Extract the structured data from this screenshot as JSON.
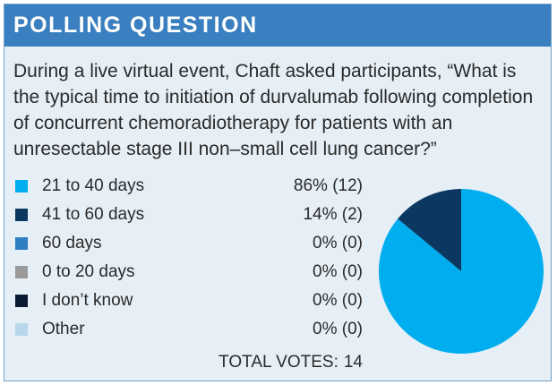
{
  "header": {
    "title": "POLLING QUESTION"
  },
  "question": "During a live virtual event, Chaft asked participants, “What is the typical time to initiation of durvalumab following completion of concurrent chemoradiotherapy for patients with an unresectable stage III non–small cell lung cancer?”",
  "colors": {
    "background": "#e6eff6",
    "header": "#3a7fbf"
  },
  "chart_data": {
    "type": "pie",
    "title": "",
    "categories": [
      "21 to 40 days",
      "41 to 60 days",
      "60 days",
      "0 to 20 days",
      "I don’t know",
      "Other"
    ],
    "values": [
      86,
      14,
      0,
      0,
      0,
      0
    ],
    "value_labels": [
      "86% (12)",
      "14% (2)",
      "0% (0)",
      "0% (0)",
      "0% (0)",
      "0% (0)"
    ],
    "counts": [
      12,
      2,
      0,
      0,
      0,
      0
    ],
    "colors": [
      "#00aeef",
      "#0b3861",
      "#2d7fc1",
      "#9a9a9a",
      "#0b1a33",
      "#b7d7ec"
    ],
    "legend_placement": "left",
    "total_label": "TOTAL VOTES:",
    "total_value": "14"
  }
}
